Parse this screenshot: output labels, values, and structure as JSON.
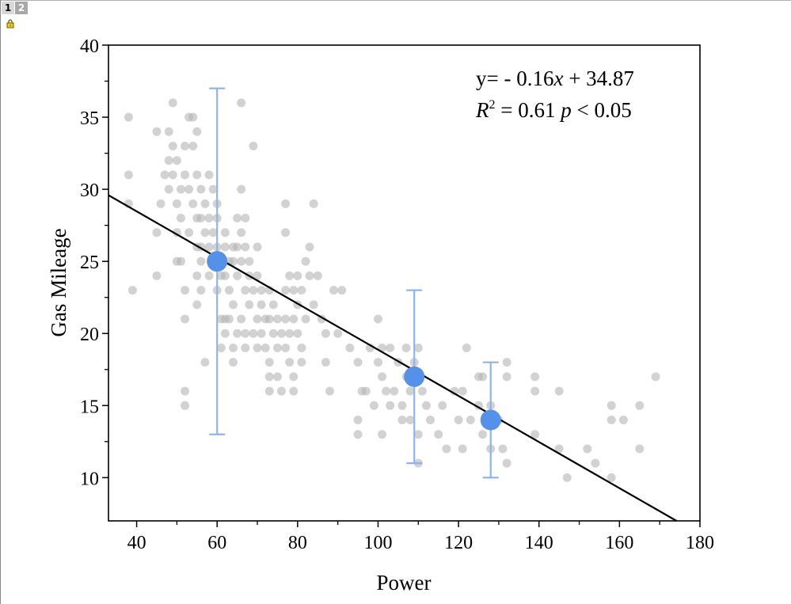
{
  "window": {
    "tabs": [
      {
        "label": "1",
        "active": true
      },
      {
        "label": "2",
        "active": false
      }
    ],
    "lock_icon": "padlock-icon"
  },
  "chart_data": {
    "type": "scatter",
    "xlabel": "Power",
    "ylabel": "Gas Mileage",
    "xlim": [
      33,
      180
    ],
    "ylim": [
      7,
      40
    ],
    "xticks": [
      40,
      60,
      80,
      100,
      120,
      140,
      160,
      180
    ],
    "yticks": [
      10,
      15,
      20,
      25,
      30,
      35,
      40
    ],
    "annotation": {
      "equation": "y= - 0.16x + 34.87",
      "equation_prefix": "y= - 0.16",
      "equation_var": "x",
      "equation_suffix": " + 34.87",
      "r_symbol": "R",
      "r_power": "2",
      "r_value": " = 0.61 ",
      "p_symbol": "p",
      "p_value": " < 0.05"
    },
    "fit_line": {
      "slope": -0.16,
      "intercept": 34.87,
      "color": "#000000"
    },
    "colors": {
      "points": "#b4b4b4",
      "means": "#5591e8",
      "error_bars": "#8fb4ec"
    },
    "mean_points": [
      {
        "x": 60,
        "y": 25,
        "err_low": 13,
        "err_high": 37
      },
      {
        "x": 109,
        "y": 17,
        "err_low": 11,
        "err_high": 23
      },
      {
        "x": 128,
        "y": 14,
        "err_low": 10,
        "err_high": 18
      }
    ],
    "scatter": [
      [
        38,
        35
      ],
      [
        38,
        31
      ],
      [
        38,
        29
      ],
      [
        39,
        23
      ],
      [
        45,
        34
      ],
      [
        45,
        27
      ],
      [
        45,
        24
      ],
      [
        46,
        29
      ],
      [
        47,
        31
      ],
      [
        48,
        34
      ],
      [
        48,
        32
      ],
      [
        48,
        30
      ],
      [
        49,
        36
      ],
      [
        49,
        33
      ],
      [
        49,
        31
      ],
      [
        50,
        32
      ],
      [
        50,
        29
      ],
      [
        50,
        27
      ],
      [
        50,
        25
      ],
      [
        51,
        30
      ],
      [
        51,
        28
      ],
      [
        51,
        25
      ],
      [
        52,
        33
      ],
      [
        52,
        31
      ],
      [
        52,
        23
      ],
      [
        52,
        21
      ],
      [
        52,
        16
      ],
      [
        52,
        15
      ],
      [
        53,
        35
      ],
      [
        53,
        30
      ],
      [
        53,
        27
      ],
      [
        54,
        35
      ],
      [
        54,
        33
      ],
      [
        54,
        29
      ],
      [
        55,
        34
      ],
      [
        55,
        31
      ],
      [
        55,
        28
      ],
      [
        55,
        26
      ],
      [
        55,
        24
      ],
      [
        55,
        22
      ],
      [
        56,
        30
      ],
      [
        56,
        28
      ],
      [
        56,
        26
      ],
      [
        56,
        25
      ],
      [
        56,
        23
      ],
      [
        57,
        29
      ],
      [
        57,
        27
      ],
      [
        57,
        18
      ],
      [
        58,
        31
      ],
      [
        58,
        28
      ],
      [
        58,
        26
      ],
      [
        58,
        24
      ],
      [
        59,
        30
      ],
      [
        59,
        27
      ],
      [
        59,
        25
      ],
      [
        60,
        29
      ],
      [
        60,
        28
      ],
      [
        60,
        26
      ],
      [
        60,
        23
      ],
      [
        61,
        24
      ],
      [
        61,
        21
      ],
      [
        61,
        19
      ],
      [
        62,
        27
      ],
      [
        62,
        26
      ],
      [
        62,
        24
      ],
      [
        62,
        21
      ],
      [
        62,
        20
      ],
      [
        63,
        25
      ],
      [
        63,
        23
      ],
      [
        63,
        21
      ],
      [
        64,
        26
      ],
      [
        64,
        25
      ],
      [
        64,
        22
      ],
      [
        64,
        19
      ],
      [
        64,
        18
      ],
      [
        65,
        28
      ],
      [
        65,
        26
      ],
      [
        65,
        24
      ],
      [
        65,
        20
      ],
      [
        66,
        36
      ],
      [
        66,
        30
      ],
      [
        66,
        27
      ],
      [
        66,
        25
      ],
      [
        66,
        21
      ],
      [
        67,
        28
      ],
      [
        67,
        26
      ],
      [
        67,
        23
      ],
      [
        67,
        20
      ],
      [
        67,
        19
      ],
      [
        68,
        25
      ],
      [
        68,
        24
      ],
      [
        68,
        22
      ],
      [
        69,
        33
      ],
      [
        69,
        23
      ],
      [
        69,
        20
      ],
      [
        70,
        26
      ],
      [
        70,
        24
      ],
      [
        70,
        21
      ],
      [
        70,
        19
      ],
      [
        71,
        23
      ],
      [
        71,
        22
      ],
      [
        71,
        20
      ],
      [
        72,
        21
      ],
      [
        72,
        19
      ],
      [
        73,
        23
      ],
      [
        73,
        21
      ],
      [
        73,
        18
      ],
      [
        73,
        17
      ],
      [
        73,
        16
      ],
      [
        74,
        22
      ],
      [
        74,
        20
      ],
      [
        75,
        21
      ],
      [
        75,
        19
      ],
      [
        75,
        17
      ],
      [
        76,
        20
      ],
      [
        76,
        16
      ],
      [
        77,
        29
      ],
      [
        77,
        27
      ],
      [
        77,
        23
      ],
      [
        77,
        21
      ],
      [
        77,
        19
      ],
      [
        78,
        24
      ],
      [
        78,
        20
      ],
      [
        78,
        18
      ],
      [
        79,
        23
      ],
      [
        79,
        21
      ],
      [
        79,
        17
      ],
      [
        79,
        16
      ],
      [
        80,
        24
      ],
      [
        80,
        22
      ],
      [
        80,
        20
      ],
      [
        81,
        23
      ],
      [
        81,
        19
      ],
      [
        81,
        18
      ],
      [
        82,
        25
      ],
      [
        82,
        21
      ],
      [
        83,
        26
      ],
      [
        83,
        24
      ],
      [
        84,
        29
      ],
      [
        84,
        22
      ],
      [
        85,
        24
      ],
      [
        86,
        21
      ],
      [
        87,
        20
      ],
      [
        87,
        18
      ],
      [
        88,
        16
      ],
      [
        89,
        23
      ],
      [
        90,
        20
      ],
      [
        91,
        23
      ],
      [
        93,
        19
      ],
      [
        95,
        18
      ],
      [
        95,
        14
      ],
      [
        95,
        13
      ],
      [
        96,
        16
      ],
      [
        97,
        16
      ],
      [
        98,
        19
      ],
      [
        99,
        15
      ],
      [
        100,
        18
      ],
      [
        100,
        21
      ],
      [
        101,
        19
      ],
      [
        101,
        17
      ],
      [
        101,
        13
      ],
      [
        102,
        16
      ],
      [
        103,
        15
      ],
      [
        103,
        19
      ],
      [
        104,
        16
      ],
      [
        105,
        18
      ],
      [
        106,
        15
      ],
      [
        106,
        14
      ],
      [
        107,
        19
      ],
      [
        107,
        17
      ],
      [
        108,
        16
      ],
      [
        108,
        14
      ],
      [
        109,
        18
      ],
      [
        110,
        19
      ],
      [
        110,
        13
      ],
      [
        110,
        11
      ],
      [
        111,
        16
      ],
      [
        112,
        15
      ],
      [
        113,
        14
      ],
      [
        115,
        13
      ],
      [
        116,
        15
      ],
      [
        117,
        12
      ],
      [
        119,
        16
      ],
      [
        120,
        14
      ],
      [
        121,
        16
      ],
      [
        121,
        12
      ],
      [
        122,
        19
      ],
      [
        123,
        14
      ],
      [
        125,
        17
      ],
      [
        125,
        15
      ],
      [
        126,
        17
      ],
      [
        126,
        13
      ],
      [
        128,
        15
      ],
      [
        128,
        12
      ],
      [
        130,
        14
      ],
      [
        131,
        12
      ],
      [
        132,
        18
      ],
      [
        132,
        17
      ],
      [
        132,
        11
      ],
      [
        139,
        17
      ],
      [
        139,
        16
      ],
      [
        139,
        13
      ],
      [
        145,
        16
      ],
      [
        145,
        12
      ],
      [
        147,
        10
      ],
      [
        152,
        12
      ],
      [
        154,
        11
      ],
      [
        158,
        15
      ],
      [
        158,
        14
      ],
      [
        158,
        10
      ],
      [
        161,
        14
      ],
      [
        165,
        15
      ],
      [
        165,
        12
      ],
      [
        169,
        17
      ]
    ]
  }
}
